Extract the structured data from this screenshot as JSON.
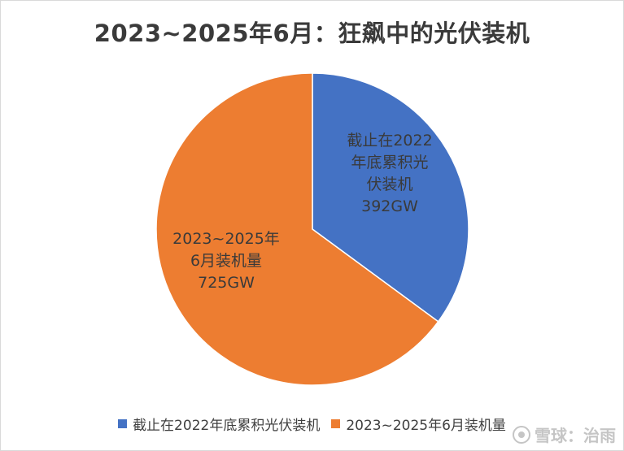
{
  "chart_data": {
    "type": "pie",
    "title": "2023~2025年6月：狂飙中的光伏装机",
    "slices": [
      {
        "name": "截止在2022年底累积光伏装机",
        "value": 392,
        "label": "截止在2022\n年底累积光\n伏装机\n392GW",
        "color": "#4472C4"
      },
      {
        "name": "2023~2025年6月装机量",
        "value": 725,
        "label": "2023~2025年\n6月装机量\n725GW",
        "color": "#ED7D31"
      }
    ],
    "unit": "GW",
    "legend_position": "bottom"
  },
  "watermark": {
    "text": "雪球：治雨"
  }
}
